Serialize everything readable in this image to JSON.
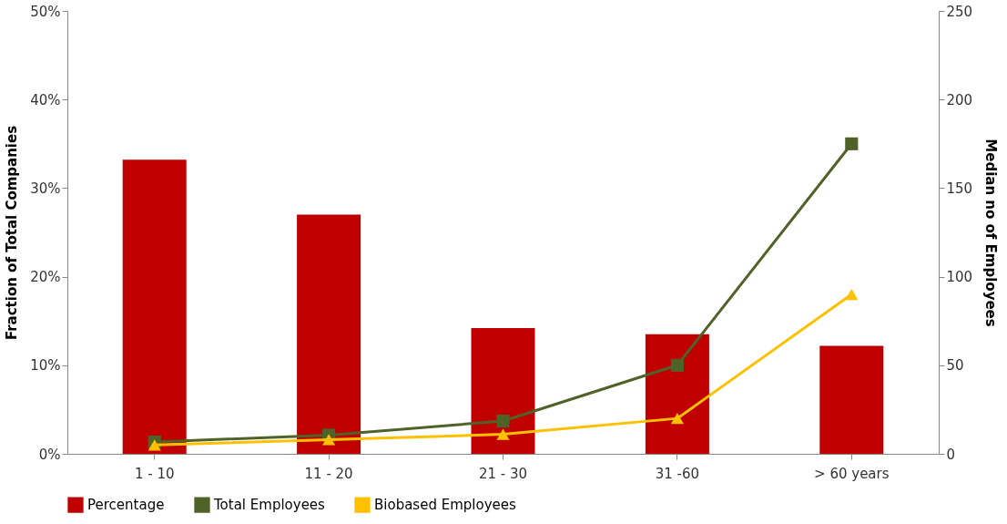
{
  "chart_data": {
    "type": "bar",
    "categories": [
      "1 - 10",
      "11 - 20",
      "21 - 30",
      "31 -60",
      "> 60 years"
    ],
    "ylabel": "Fraction of Total Companies",
    "y2label": "Median no of Employees",
    "ylim": [
      0,
      50
    ],
    "yticks": [
      {
        "value": 0,
        "label": "0%"
      },
      {
        "value": 10,
        "label": "10%"
      },
      {
        "value": 20,
        "label": "20%"
      },
      {
        "value": 30,
        "label": "30%"
      },
      {
        "value": 40,
        "label": "40%"
      },
      {
        "value": 50,
        "label": "50%"
      }
    ],
    "y2lim": [
      0,
      250
    ],
    "y2ticks": [
      0,
      50,
      100,
      150,
      200,
      250
    ],
    "series": [
      {
        "name": "Percentage",
        "color": "#c00000",
        "values": [
          33.2,
          27.0,
          14.2,
          13.5,
          12.2
        ]
      },
      {
        "name": "Total Employees",
        "type": "line",
        "axis": "y2",
        "marker": "square",
        "color": "#4f6228",
        "values": [
          6.7,
          10.6,
          18.5,
          50,
          175
        ]
      },
      {
        "name": "Biobased Employees",
        "type": "line",
        "axis": "y2",
        "marker": "triangle",
        "color": "#ffc000",
        "values": [
          5,
          8,
          11,
          20,
          90
        ]
      }
    ],
    "legend": "bottom",
    "grid": false
  }
}
